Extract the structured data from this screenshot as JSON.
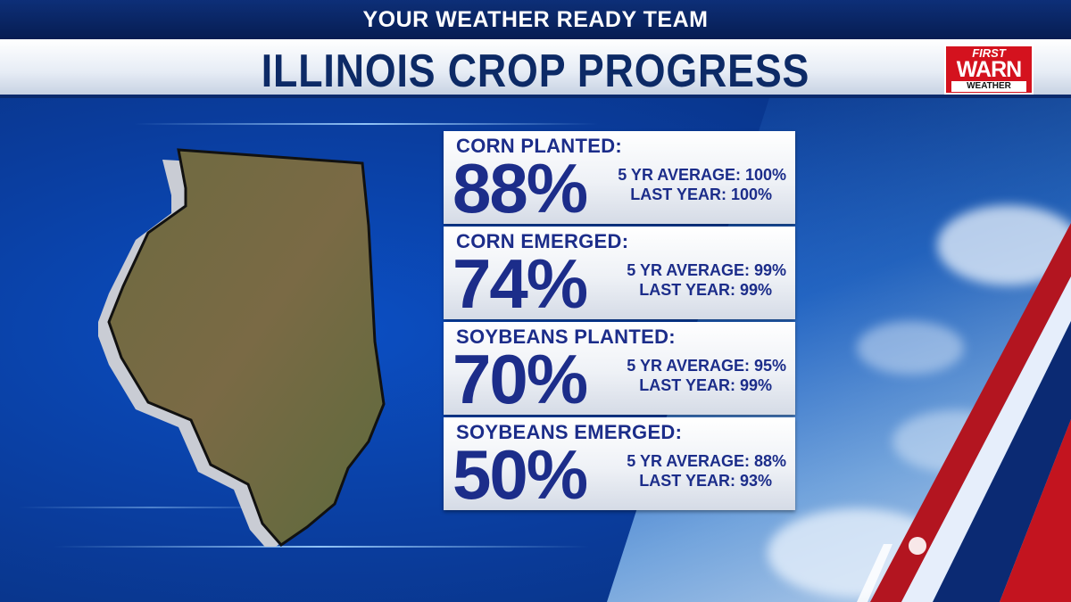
{
  "header": {
    "team": "YOUR WEATHER READY TEAM",
    "title": "ILLINOIS CROP PROGRESS"
  },
  "logo": {
    "first": "FIRST",
    "warn": "WARN",
    "weather": "WEATHER"
  },
  "cards": [
    {
      "label": "CORN PLANTED:",
      "value": "88%",
      "avg": "5 YR AVERAGE: 100%",
      "last": "LAST YEAR: 100%"
    },
    {
      "label": "CORN EMERGED:",
      "value": "74%",
      "avg": "5 YR AVERAGE: 99%",
      "last": "LAST YEAR: 99%"
    },
    {
      "label": "SOYBEANS PLANTED:",
      "value": "70%",
      "avg": "5 YR AVERAGE: 95%",
      "last": "LAST YEAR: 99%"
    },
    {
      "label": "SOYBEANS EMERGED:",
      "value": "50%",
      "avg": "5 YR AVERAGE: 88%",
      "last": "LAST YEAR: 93%"
    }
  ],
  "colors": {
    "background": "#0a3d9e",
    "card_text": "#1c2d8a",
    "title_text": "#0d2a66",
    "accent_red": "#d4121e"
  }
}
